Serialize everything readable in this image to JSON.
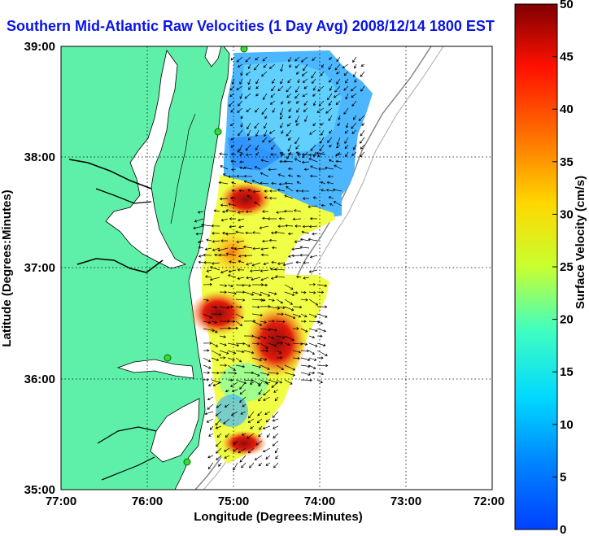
{
  "title": "Southern Mid-Atlantic Raw Velocities (1 Day Avg) 2008/12/14 1800 EST",
  "map": {
    "x_axis_label": "Longitude (Degrees:Minutes)",
    "y_axis_label": "Latitude (Degrees:Minutes)",
    "x_ticks": [
      "77:00",
      "76:00",
      "75:00",
      "74:00",
      "73:00",
      "72:00"
    ],
    "y_ticks": [
      "39:00",
      "38:00",
      "37:00",
      "36:00",
      "35:00"
    ],
    "lon_range": [
      -77,
      -72
    ],
    "lat_range": [
      35,
      39
    ],
    "grid": true,
    "colors": {
      "land": "#5ef0a8",
      "water": "#ffffff",
      "arrows": "#000000",
      "station": "#33dd33"
    }
  },
  "colorbar": {
    "label": "Surface Velocity (cm/s)",
    "range": [
      0,
      50
    ],
    "ticks": [
      "50",
      "45",
      "40",
      "35",
      "30",
      "25",
      "20",
      "15",
      "10",
      "5",
      "0"
    ],
    "colormap": "jet"
  }
}
